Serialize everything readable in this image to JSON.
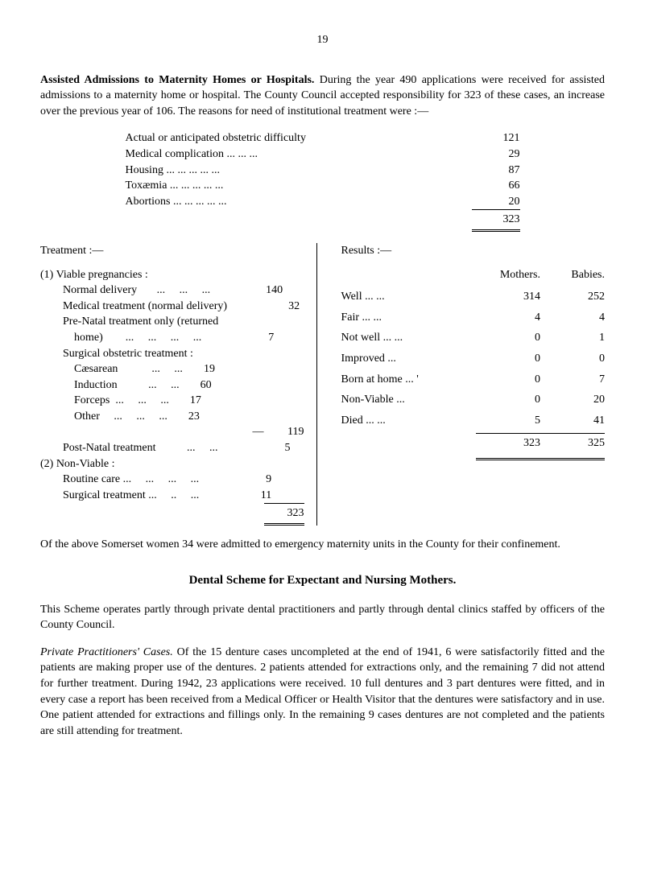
{
  "page_number": "19",
  "intro": {
    "lead": "Assisted Admissions to Maternity Homes or Hospitals.",
    "rest": " During the year 490 applications were received for assisted admissions to a maternity home or hospital. The County Council accepted responsibility for 323 of these cases, an increase over the previous year of 106. The reasons for need of institutional treatment were :—"
  },
  "reasons": {
    "items": [
      {
        "label": "Actual or anticipated obstetric difficulty",
        "value": "121"
      },
      {
        "label": "Medical complication      ...     ...     ...",
        "value": "29"
      },
      {
        "label": "Housing       ...     ...     ...     ...     ...",
        "value": "87"
      },
      {
        "label": "Toxæmia      ...     ...     ...     ...     ...",
        "value": "66"
      },
      {
        "label": "Abortions     ...     ...     ...     ...     ...",
        "value": "20"
      }
    ],
    "total": "323"
  },
  "treatment": {
    "heading": "Treatment :—",
    "groups": [
      {
        "head": "(1) Viable pregnancies :",
        "rows": [
          {
            "label": "        Normal delivery       ...     ...     ...",
            "v1": "",
            "v2": "140"
          },
          {
            "label": "        Medical treatment (normal delivery)",
            "v1": "",
            "v2": "32"
          },
          {
            "label": "        Pre-Natal treatment only (returned",
            "v1": "",
            "v2": ""
          },
          {
            "label": "            home)        ...     ...     ...     ...",
            "v1": "",
            "v2": "7"
          },
          {
            "label": "        Surgical obstetric treatment :",
            "v1": "",
            "v2": ""
          },
          {
            "label": "            Cæsarean            ...     ...",
            "v1": "19",
            "v2": ""
          },
          {
            "label": "            Induction           ...     ...",
            "v1": "60",
            "v2": ""
          },
          {
            "label": "            Forceps  ...     ...     ...",
            "v1": "17",
            "v2": ""
          },
          {
            "label": "            Other     ...     ...     ...",
            "v1": "23",
            "v2": ""
          },
          {
            "label": "",
            "v1": "—",
            "v2": "119"
          },
          {
            "label": "        Post-Natal treatment           ...     ...",
            "v1": "",
            "v2": "5"
          }
        ]
      },
      {
        "head": "(2) Non-Viable :",
        "rows": [
          {
            "label": "        Routine care ...     ...     ...     ...",
            "v1": "",
            "v2": "9"
          },
          {
            "label": "        Surgical treatment ...     ..     ...",
            "v1": "",
            "v2": "11"
          }
        ]
      }
    ],
    "total": "323"
  },
  "results": {
    "heading": "Results :—",
    "col_mothers": "Mothers.",
    "col_babies": "Babies.",
    "rows": [
      {
        "label": "Well         ...     ...",
        "mothers": "314",
        "dots1": "...",
        "babies": "252"
      },
      {
        "label": "Fair          ...     ...",
        "mothers": "4",
        "dots1": "...",
        "babies": "4"
      },
      {
        "label": "Not well ...     ...",
        "mothers": "0",
        "dots1": "...",
        "babies": "1"
      },
      {
        "label": "Improved        ...",
        "mothers": "0",
        "dots1": "...",
        "babies": "0"
      },
      {
        "label": "Born at home  ... '",
        "mothers": "0",
        "dots1": "...",
        "babies": "7"
      },
      {
        "label": "Non-Viable      ...",
        "mothers": "0",
        "dots1": "...",
        "babies": "20"
      },
      {
        "label": "Died         ...     ...",
        "mothers": "5",
        "dots1": "...",
        "babies": "41"
      }
    ],
    "total_mothers": "323",
    "total_babies": "325"
  },
  "note_after": "Of the above Somerset women 34 were admitted to emergency maternity units in the County for their confinement.",
  "dental_heading": "Dental Scheme for Expectant and Nursing Mothers.",
  "dental_p1": "This Scheme operates partly through private dental practitioners and partly through dental clinics staffed by officers of the County Council.",
  "dental_p2_lead": "Private Practitioners' Cases.",
  "dental_p2_rest": " Of the 15 denture cases uncompleted at the end of 1941, 6 were satisfactorily fitted and the patients are making proper use of the dentures. 2 patients attended for extractions only, and the remaining 7 did not attend for further treatment. During 1942, 23 applications were received. 10 full dentures and 3 part dentures were fitted, and in every case a report has been received from a Medical Officer or Health Visitor that the dentures were satisfactory and in use. One patient attended for extractions and fillings only. In the remaining 9 cases dentures are not completed and the patients are still attending for treatment."
}
